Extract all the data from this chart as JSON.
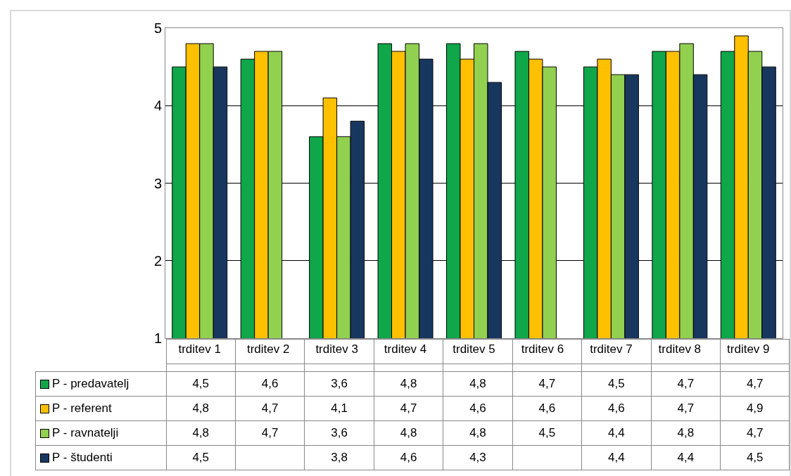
{
  "chart_data": {
    "type": "bar",
    "categories": [
      "trditev 1",
      "trditev 2",
      "trditev 3",
      "trditev 4",
      "trditev 5",
      "trditev 6",
      "trditev 7",
      "trditev 8",
      "trditev 9"
    ],
    "series": [
      {
        "name": "P - predavatelj",
        "color": "#10a64a",
        "values": [
          4.5,
          4.6,
          3.6,
          4.8,
          4.8,
          4.7,
          4.5,
          4.7,
          4.7
        ],
        "value_labels": [
          "4,5",
          "4,6",
          "3,6",
          "4,8",
          "4,8",
          "4,7",
          "4,5",
          "4,7",
          "4,7"
        ]
      },
      {
        "name": "P - referent",
        "color": "#ffc000",
        "values": [
          4.8,
          4.7,
          4.1,
          4.7,
          4.6,
          4.6,
          4.6,
          4.7,
          4.9
        ],
        "value_labels": [
          "4,8",
          "4,7",
          "4,1",
          "4,7",
          "4,6",
          "4,6",
          "4,6",
          "4,7",
          "4,9"
        ]
      },
      {
        "name": "P - ravnatelji",
        "color": "#92d050",
        "values": [
          4.8,
          4.7,
          3.6,
          4.8,
          4.8,
          4.5,
          4.4,
          4.8,
          4.7
        ],
        "value_labels": [
          "4,8",
          "4,7",
          "3,6",
          "4,8",
          "4,8",
          "4,5",
          "4,4",
          "4,8",
          "4,7"
        ]
      },
      {
        "name": "P - študenti",
        "color": "#17375e",
        "values": [
          4.5,
          null,
          3.8,
          4.6,
          4.3,
          null,
          4.4,
          4.4,
          4.5
        ],
        "value_labels": [
          "4,5",
          null,
          "3,8",
          "4,6",
          "4,3",
          null,
          "4,4",
          "4,4",
          "4,5"
        ]
      }
    ],
    "ylim": [
      1,
      5
    ],
    "yticks": [
      1,
      2,
      3,
      4,
      5
    ],
    "grid": "y",
    "legend": "bottom"
  }
}
